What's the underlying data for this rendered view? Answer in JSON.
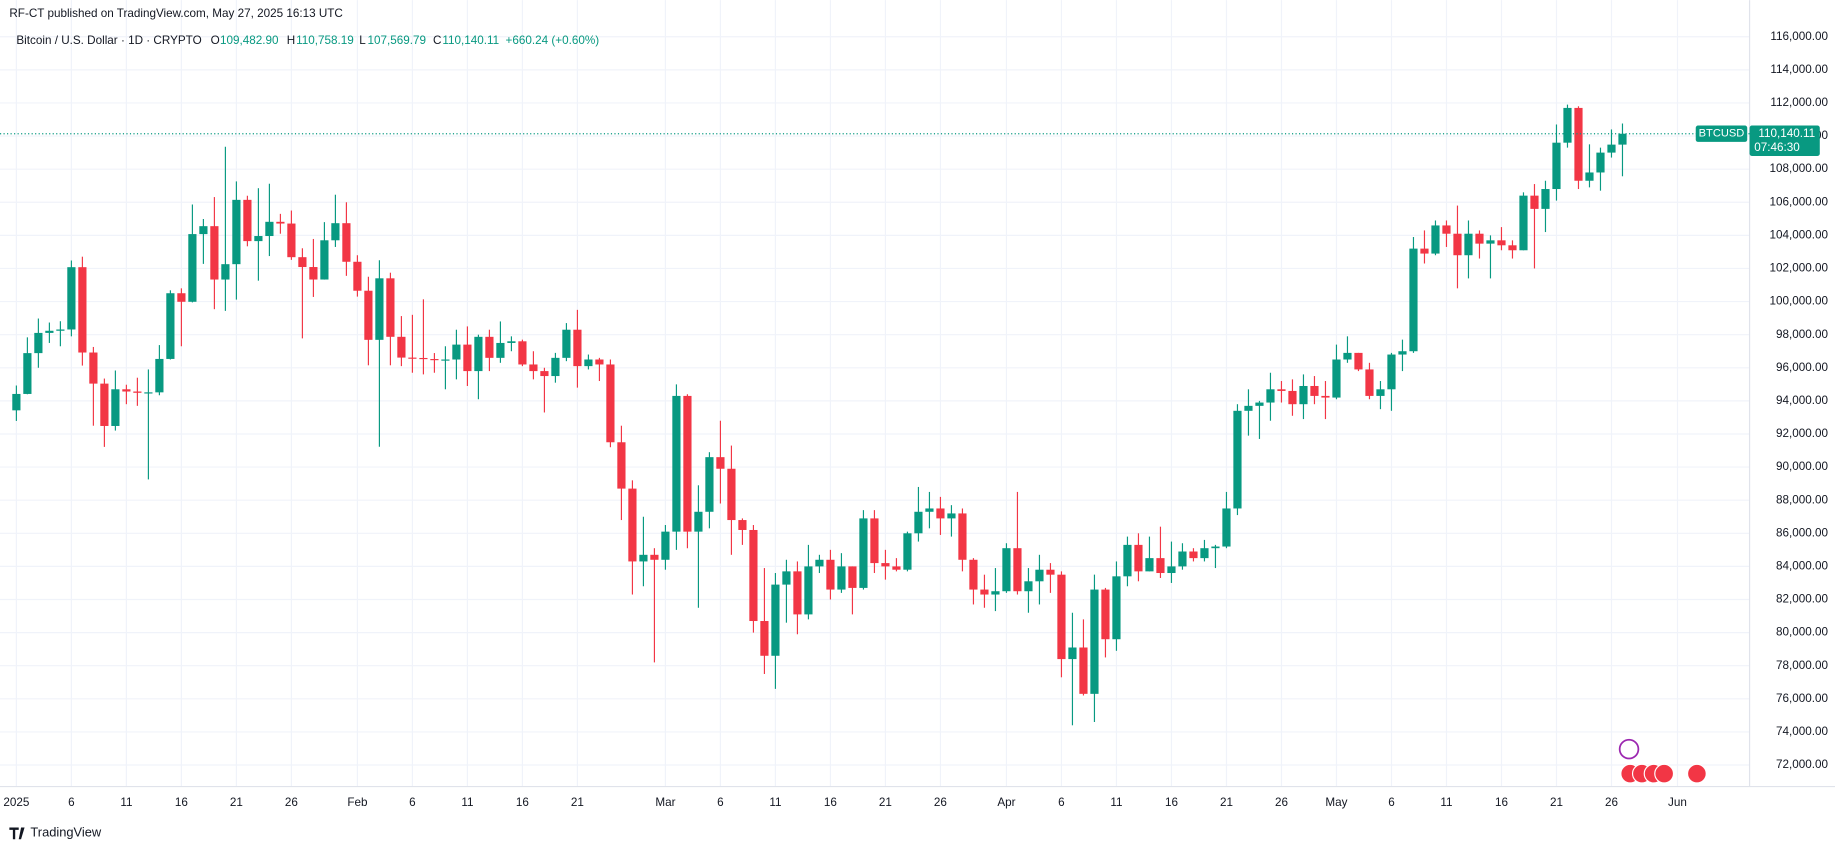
{
  "header": {
    "publisher": "RF-CT published on TradingView.com, May 27, 2025 16:13 UTC",
    "symbol": "Bitcoin / U.S. Dollar · 1D · CRYPTO",
    "open_label": "O",
    "open": "109,482.90",
    "high_label": "H",
    "high": "110,758.19",
    "low_label": "L",
    "low": "107,569.79",
    "close_label": "C",
    "close": "110,140.11",
    "change": "+660.24 (+0.60%)"
  },
  "price_tag": {
    "ticker": "BTCUSD",
    "price": "110,140.11",
    "countdown": "07:46:30"
  },
  "footer": {
    "brand": "TradingView"
  },
  "chart_data": {
    "type": "candlestick",
    "up_color": "#089981",
    "down_color": "#f23645",
    "grid": true,
    "xlim": [
      "2024-12-31",
      "2025-06-06"
    ],
    "ylim": [
      70700,
      116800
    ],
    "xticks": [
      {
        "value": "2025-01-01",
        "label": "2025"
      },
      {
        "value": "2025-01-06",
        "label": "6"
      },
      {
        "value": "2025-01-11",
        "label": "11"
      },
      {
        "value": "2025-01-16",
        "label": "16"
      },
      {
        "value": "2025-01-21",
        "label": "21"
      },
      {
        "value": "2025-01-26",
        "label": "26"
      },
      {
        "value": "2025-02-01",
        "label": "Feb"
      },
      {
        "value": "2025-02-06",
        "label": "6"
      },
      {
        "value": "2025-02-11",
        "label": "11"
      },
      {
        "value": "2025-02-16",
        "label": "16"
      },
      {
        "value": "2025-02-21",
        "label": "21"
      },
      {
        "value": "2025-03-01",
        "label": "Mar"
      },
      {
        "value": "2025-03-06",
        "label": "6"
      },
      {
        "value": "2025-03-11",
        "label": "11"
      },
      {
        "value": "2025-03-16",
        "label": "16"
      },
      {
        "value": "2025-03-21",
        "label": "21"
      },
      {
        "value": "2025-03-26",
        "label": "26"
      },
      {
        "value": "2025-04-01",
        "label": "Apr"
      },
      {
        "value": "2025-04-06",
        "label": "6"
      },
      {
        "value": "2025-04-11",
        "label": "11"
      },
      {
        "value": "2025-04-16",
        "label": "16"
      },
      {
        "value": "2025-04-21",
        "label": "21"
      },
      {
        "value": "2025-04-26",
        "label": "26"
      },
      {
        "value": "2025-05-01",
        "label": "May"
      },
      {
        "value": "2025-05-06",
        "label": "6"
      },
      {
        "value": "2025-05-11",
        "label": "11"
      },
      {
        "value": "2025-05-16",
        "label": "16"
      },
      {
        "value": "2025-05-21",
        "label": "21"
      },
      {
        "value": "2025-05-26",
        "label": "26"
      },
      {
        "value": "2025-06-01",
        "label": "Jun"
      }
    ],
    "yticks": [
      {
        "value": 72000,
        "label": "72,000.00"
      },
      {
        "value": 74000,
        "label": "74,000.00"
      },
      {
        "value": 76000,
        "label": "76,000.00"
      },
      {
        "value": 78000,
        "label": "78,000.00"
      },
      {
        "value": 80000,
        "label": "80,000.00"
      },
      {
        "value": 82000,
        "label": "82,000.00"
      },
      {
        "value": 84000,
        "label": "84,000.00"
      },
      {
        "value": 86000,
        "label": "86,000.00"
      },
      {
        "value": 88000,
        "label": "88,000.00"
      },
      {
        "value": 90000,
        "label": "90,000.00"
      },
      {
        "value": 92000,
        "label": "92,000.00"
      },
      {
        "value": 94000,
        "label": "94,000.00"
      },
      {
        "value": 96000,
        "label": "96,000.00"
      },
      {
        "value": 98000,
        "label": "98,000.00"
      },
      {
        "value": 100000,
        "label": "100,000.00"
      },
      {
        "value": 102000,
        "label": "102,000.00"
      },
      {
        "value": 104000,
        "label": "104,000.00"
      },
      {
        "value": 106000,
        "label": "106,000.00"
      },
      {
        "value": 108000,
        "label": "108,000.00"
      },
      {
        "value": 110000,
        "label": "110,000.00"
      },
      {
        "value": 112000,
        "label": "112,000.00"
      },
      {
        "value": 114000,
        "label": "114,000.00"
      },
      {
        "value": 116000,
        "label": "116,000.00"
      }
    ],
    "x": [
      "2025-01-01",
      "2025-01-02",
      "2025-01-03",
      "2025-01-04",
      "2025-01-05",
      "2025-01-06",
      "2025-01-07",
      "2025-01-08",
      "2025-01-09",
      "2025-01-10",
      "2025-01-11",
      "2025-01-12",
      "2025-01-13",
      "2025-01-14",
      "2025-01-15",
      "2025-01-16",
      "2025-01-17",
      "2025-01-18",
      "2025-01-19",
      "2025-01-20",
      "2025-01-21",
      "2025-01-22",
      "2025-01-23",
      "2025-01-24",
      "2025-01-25",
      "2025-01-26",
      "2025-01-27",
      "2025-01-28",
      "2025-01-29",
      "2025-01-30",
      "2025-01-31",
      "2025-02-01",
      "2025-02-02",
      "2025-02-03",
      "2025-02-04",
      "2025-02-05",
      "2025-02-06",
      "2025-02-07",
      "2025-02-08",
      "2025-02-09",
      "2025-02-10",
      "2025-02-11",
      "2025-02-12",
      "2025-02-13",
      "2025-02-14",
      "2025-02-15",
      "2025-02-16",
      "2025-02-17",
      "2025-02-18",
      "2025-02-19",
      "2025-02-20",
      "2025-02-21",
      "2025-02-22",
      "2025-02-23",
      "2025-02-24",
      "2025-02-25",
      "2025-02-26",
      "2025-02-27",
      "2025-02-28",
      "2025-03-01",
      "2025-03-02",
      "2025-03-03",
      "2025-03-04",
      "2025-03-05",
      "2025-03-06",
      "2025-03-07",
      "2025-03-08",
      "2025-03-09",
      "2025-03-10",
      "2025-03-11",
      "2025-03-12",
      "2025-03-13",
      "2025-03-14",
      "2025-03-15",
      "2025-03-16",
      "2025-03-17",
      "2025-03-18",
      "2025-03-19",
      "2025-03-20",
      "2025-03-21",
      "2025-03-22",
      "2025-03-23",
      "2025-03-24",
      "2025-03-25",
      "2025-03-26",
      "2025-03-27",
      "2025-03-28",
      "2025-03-29",
      "2025-03-30",
      "2025-03-31",
      "2025-04-01",
      "2025-04-02",
      "2025-04-03",
      "2025-04-04",
      "2025-04-05",
      "2025-04-06",
      "2025-04-07",
      "2025-04-08",
      "2025-04-09",
      "2025-04-10",
      "2025-04-11",
      "2025-04-12",
      "2025-04-13",
      "2025-04-14",
      "2025-04-15",
      "2025-04-16",
      "2025-04-17",
      "2025-04-18",
      "2025-04-19",
      "2025-04-20",
      "2025-04-21",
      "2025-04-22",
      "2025-04-23",
      "2025-04-24",
      "2025-04-25",
      "2025-04-26",
      "2025-04-27",
      "2025-04-28",
      "2025-04-29",
      "2025-04-30",
      "2025-05-01",
      "2025-05-02",
      "2025-05-03",
      "2025-05-04",
      "2025-05-05",
      "2025-05-06",
      "2025-05-07",
      "2025-05-08",
      "2025-05-09",
      "2025-05-10",
      "2025-05-11",
      "2025-05-12",
      "2025-05-13",
      "2025-05-14",
      "2025-05-15",
      "2025-05-16",
      "2025-05-17",
      "2025-05-18",
      "2025-05-19",
      "2025-05-20",
      "2025-05-21",
      "2025-05-22",
      "2025-05-23",
      "2025-05-24",
      "2025-05-25",
      "2025-05-26",
      "2025-05-27"
    ],
    "open": [
      93429,
      94419,
      96886,
      98107,
      98236,
      98314,
      102078,
      96922,
      95043,
      92484,
      94701,
      94566,
      94488,
      94516,
      96534,
      100504,
      99987,
      104077,
      104556,
      101331,
      102260,
      106146,
      103653,
      103960,
      104819,
      104714,
      102682,
      102087,
      101332,
      103703,
      104736,
      102405,
      100655,
      97688,
      101405,
      97871,
      96615,
      96593,
      96529,
      96482,
      96500,
      97400,
      95800,
      97870,
      96600,
      97500,
      97600,
      96200,
      95800,
      95500,
      96600,
      98300,
      96100,
      96500,
      96200,
      91500,
      88700,
      84300,
      84700,
      84400,
      86100,
      94300,
      86100,
      87300,
      90600,
      89900,
      86800,
      86200,
      80700,
      78600,
      82900,
      83700,
      81100,
      84000,
      84400,
      82600,
      84000,
      82700,
      86900,
      84200,
      84000,
      83800,
      86000,
      87300,
      87500,
      86900,
      87200,
      84400,
      82600,
      82300,
      82500,
      85100,
      82500,
      83100,
      83800,
      83500,
      78400,
      79100,
      76300,
      82600,
      79600,
      83400,
      85300,
      83700,
      84500,
      83600,
      84000,
      84900,
      84500,
      85100,
      85200,
      87500,
      93400,
      93700,
      93900,
      94700,
      94600,
      93800,
      94900,
      94300,
      94200,
      96500,
      96900,
      95900,
      94300,
      94700,
      96800,
      97000,
      103200,
      102900,
      104600,
      104100,
      102800,
      104100,
      103500,
      103700,
      103400,
      103100,
      106400,
      105600,
      106800,
      109600,
      111700,
      107300,
      107800,
      109000,
      109482.9
    ],
    "high": [
      94929,
      97839,
      98976,
      98734,
      98813,
      102482,
      102712,
      97258,
      95349,
      95836,
      94977,
      95400,
      95900,
      97371,
      100681,
      100800,
      105865,
      104988,
      106314,
      109356,
      107261,
      106394,
      106850,
      107120,
      105300,
      105500,
      103220,
      103783,
      104800,
      106457,
      106000,
      102800,
      101500,
      102500,
      101745,
      99124,
      99200,
      100137,
      96890,
      97300,
      98300,
      98500,
      98000,
      98300,
      98800,
      97900,
      97700,
      97000,
      96000,
      96900,
      98700,
      99500,
      96800,
      96600,
      96500,
      92500,
      89200,
      87000,
      85100,
      86500,
      95000,
      94400,
      88900,
      90900,
      92800,
      91300,
      86900,
      86500,
      83900,
      83600,
      84400,
      84300,
      85300,
      84700,
      85000,
      84800,
      84000,
      87400,
      87400,
      85000,
      84500,
      86100,
      88800,
      88500,
      88200,
      87700,
      87500,
      84500,
      83500,
      83900,
      85400,
      88500,
      83900,
      84700,
      84200,
      83700,
      81200,
      80800,
      83500,
      82700,
      84300,
      85800,
      86000,
      85800,
      86400,
      85500,
      85400,
      85100,
      85600,
      85300,
      88500,
      93800,
      94700,
      94000,
      95700,
      95200,
      95300,
      95600,
      95500,
      95200,
      97400,
      97900,
      96900,
      96300,
      95200,
      96900,
      97700,
      103900,
      104300,
      104900,
      104900,
      105800,
      104900,
      104300,
      104000,
      104500,
      103700,
      106600,
      107100,
      107300,
      110700,
      111900,
      111800,
      109500,
      109300,
      110400,
      110758.19
    ],
    "low": [
      92788,
      94400,
      96000,
      97500,
      97300,
      97900,
      96132,
      92500,
      91220,
      92206,
      93800,
      93700,
      89256,
      94340,
      96500,
      97300,
      99950,
      102277,
      99540,
      99436,
      100119,
      103339,
      101262,
      102750,
      104100,
      102520,
      97777,
      100280,
      101328,
      103300,
      101554,
      100300,
      96150,
      91231,
      96150,
      96100,
      95700,
      95600,
      95700,
      94700,
      95300,
      94900,
      94100,
      95800,
      96300,
      97000,
      96100,
      95300,
      93300,
      95100,
      96400,
      94800,
      95900,
      95200,
      91200,
      86800,
      82300,
      82800,
      78200,
      83800,
      85000,
      85100,
      81500,
      86300,
      87800,
      84700,
      85300,
      80000,
      77500,
      76600,
      80600,
      79900,
      80800,
      83600,
      82000,
      82400,
      81100,
      82600,
      83600,
      83200,
      83700,
      83700,
      85500,
      86300,
      85900,
      85800,
      83700,
      81700,
      81500,
      81300,
      82400,
      82300,
      81200,
      81700,
      82400,
      77300,
      74400,
      76200,
      74600,
      78500,
      78900,
      82800,
      83100,
      83700,
      83300,
      83000,
      83800,
      84300,
      84300,
      83900,
      85100,
      87100,
      91900,
      91700,
      92800,
      93900,
      93100,
      92900,
      93800,
      92900,
      94100,
      96300,
      95800,
      94100,
      93500,
      93400,
      95800,
      96900,
      102300,
      102800,
      103300,
      100800,
      101400,
      102600,
      101400,
      103100,
      102600,
      103100,
      102000,
      104200,
      106100,
      109300,
      106800,
      106900,
      106700,
      108700,
      107569.79
    ],
    "close": [
      94419,
      96886,
      98107,
      98236,
      98314,
      102078,
      96922,
      95043,
      92484,
      94701,
      94566,
      94488,
      94516,
      96534,
      100504,
      99987,
      104077,
      104556,
      101331,
      102260,
      106146,
      103653,
      103960,
      104819,
      104714,
      102682,
      102087,
      101332,
      103703,
      104736,
      102405,
      100655,
      97688,
      101405,
      97871,
      96615,
      96593,
      96529,
      96482,
      96500,
      97400,
      95800,
      97870,
      96600,
      97500,
      97600,
      96200,
      95800,
      95500,
      96600,
      98300,
      96100,
      96500,
      96200,
      91500,
      88700,
      84300,
      84700,
      84400,
      86100,
      94300,
      86100,
      87300,
      90600,
      89900,
      86800,
      86200,
      80700,
      78600,
      82900,
      83700,
      81100,
      84000,
      84400,
      82600,
      84000,
      82700,
      86900,
      84200,
      84000,
      83800,
      86000,
      87300,
      87500,
      86900,
      87200,
      84400,
      82600,
      82300,
      82500,
      85100,
      82500,
      83100,
      83800,
      83500,
      78400,
      79100,
      76300,
      82600,
      79600,
      83400,
      85300,
      83700,
      84500,
      83600,
      84000,
      84900,
      84500,
      85100,
      85200,
      87500,
      93400,
      93700,
      93900,
      94700,
      94600,
      93800,
      94900,
      94300,
      94200,
      96500,
      96900,
      95900,
      94300,
      94700,
      96800,
      97000,
      103200,
      102900,
      104600,
      104100,
      102800,
      104100,
      103500,
      103700,
      103400,
      103100,
      106400,
      105600,
      106800,
      109600,
      111700,
      107300,
      107800,
      109000,
      109483,
      110140.11
    ]
  }
}
